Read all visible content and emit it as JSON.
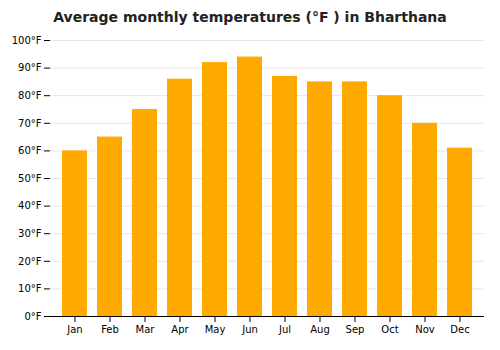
{
  "chart_data": {
    "type": "bar",
    "title": "Average monthly temperatures (°F ) in Bharthana",
    "categories": [
      "Jan",
      "Feb",
      "Mar",
      "Apr",
      "May",
      "Jun",
      "Jul",
      "Aug",
      "Sep",
      "Oct",
      "Nov",
      "Dec"
    ],
    "values": [
      60,
      65,
      75,
      86,
      92,
      94,
      87,
      85,
      85,
      80,
      70,
      61
    ],
    "color": "#FFAA00",
    "ylim": [
      0,
      100
    ],
    "yticks": [
      {
        "value": 0,
        "label": "0°F"
      },
      {
        "value": 10,
        "label": "10°F"
      },
      {
        "value": 20,
        "label": "20°F"
      },
      {
        "value": 30,
        "label": "30°F"
      },
      {
        "value": 40,
        "label": "40°F"
      },
      {
        "value": 50,
        "label": "50°F"
      },
      {
        "value": 60,
        "label": "60°F"
      },
      {
        "value": 70,
        "label": "70°F"
      },
      {
        "value": 80,
        "label": "80°F"
      },
      {
        "value": 90,
        "label": "90°F"
      },
      {
        "value": 100,
        "label": "100°F"
      }
    ],
    "grid": true
  }
}
